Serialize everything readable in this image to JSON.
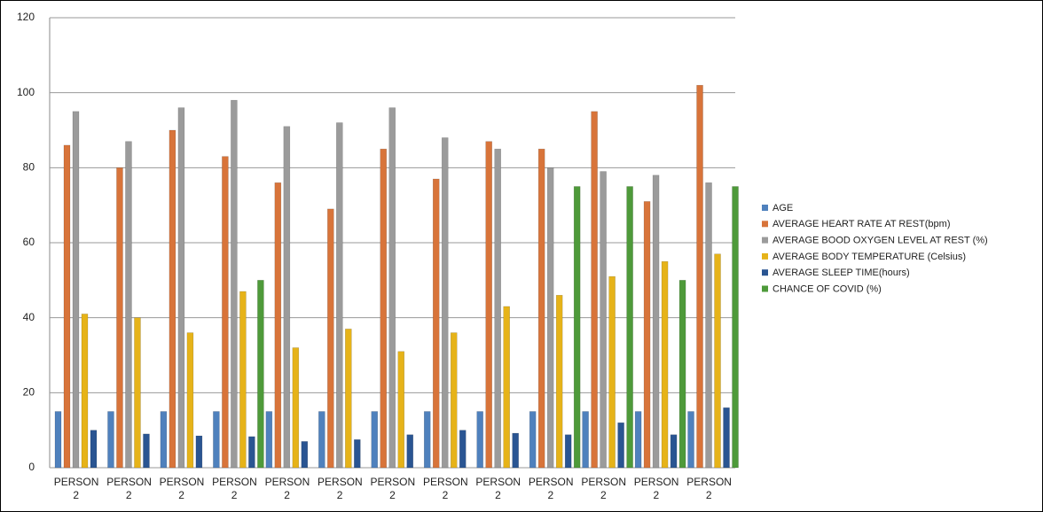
{
  "chart_data": {
    "type": "bar",
    "categories": [
      "PERSON 2",
      "PERSON 2",
      "PERSON 2",
      "PERSON 2",
      "PERSON 2",
      "PERSON 2",
      "PERSON 2",
      "PERSON 2",
      "PERSON 2",
      "PERSON 2",
      "PERSON 2",
      "PERSON 2",
      "PERSON 2"
    ],
    "series": [
      {
        "name": "AGE",
        "color": "#4f81bd",
        "values": [
          15,
          15,
          15,
          15,
          15,
          15,
          15,
          15,
          15,
          15,
          15,
          15,
          15
        ]
      },
      {
        "name": "AVERAGE HEART RATE AT REST(bpm)",
        "color": "#d8743a",
        "values": [
          86,
          80,
          90,
          83,
          76,
          69,
          85,
          77,
          87,
          85,
          95,
          71,
          102
        ]
      },
      {
        "name": "AVERAGE BOOD OXYGEN LEVEL AT REST (%)",
        "color": "#9b9b9b",
        "values": [
          95,
          87,
          96,
          98,
          91,
          92,
          96,
          88,
          85,
          80,
          79,
          78,
          76
        ]
      },
      {
        "name": "AVERAGE BODY TEMPERATURE (Celsius)",
        "color": "#e6b319",
        "values": [
          41,
          40,
          36,
          47,
          32,
          37,
          31,
          36,
          43,
          46,
          51,
          55,
          57
        ]
      },
      {
        "name": "AVERAGE SLEEP TIME(hours)",
        "color": "#2a5592",
        "values": [
          10,
          9,
          8.5,
          8.3,
          7,
          7.5,
          8.8,
          10,
          9.2,
          8.8,
          12,
          8.8,
          16
        ]
      },
      {
        "name": "CHANCE OF COVID (%)",
        "color": "#4e9a3a",
        "values": [
          0,
          0,
          0,
          50,
          0,
          0,
          0,
          0,
          0,
          75,
          75,
          50,
          75
        ]
      }
    ],
    "ylim": [
      0,
      120
    ],
    "yticks": [
      0,
      20,
      40,
      60,
      80,
      100,
      120
    ],
    "grid": true
  }
}
